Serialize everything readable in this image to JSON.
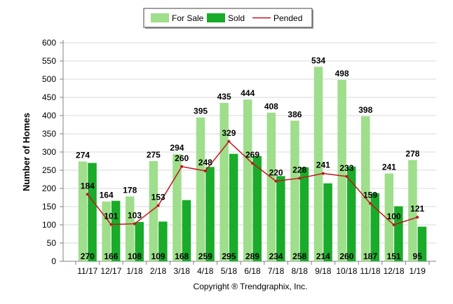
{
  "chart_data": {
    "type": "bar",
    "categories": [
      "11/17",
      "12/17",
      "1/18",
      "2/18",
      "3/18",
      "4/18",
      "5/18",
      "6/18",
      "7/18",
      "8/18",
      "9/18",
      "10/18",
      "11/18",
      "12/18",
      "1/19"
    ],
    "series": [
      {
        "name": "For Sale",
        "type": "bar",
        "color": "#9fde8b",
        "values": [
          274,
          164,
          178,
          275,
          294,
          395,
          435,
          444,
          408,
          386,
          534,
          498,
          398,
          241,
          278
        ]
      },
      {
        "name": "Sold",
        "type": "bar",
        "color": "#1aab2a",
        "values": [
          270,
          166,
          108,
          109,
          168,
          259,
          295,
          289,
          234,
          258,
          214,
          260,
          187,
          151,
          95
        ]
      },
      {
        "name": "Pended",
        "type": "line",
        "color": "#c0171c",
        "values": [
          184,
          101,
          103,
          153,
          260,
          248,
          329,
          269,
          220,
          228,
          241,
          233,
          159,
          100,
          121
        ]
      }
    ],
    "xlabel": "",
    "ylabel": "Number of Homes",
    "ylim": [
      0,
      600
    ],
    "yticks": [
      0,
      50,
      100,
      150,
      200,
      250,
      300,
      350,
      400,
      450,
      500,
      550,
      600
    ],
    "grid": true,
    "legend_position": "top-center",
    "credit": "Copyright ® Trendgraphix, Inc."
  }
}
